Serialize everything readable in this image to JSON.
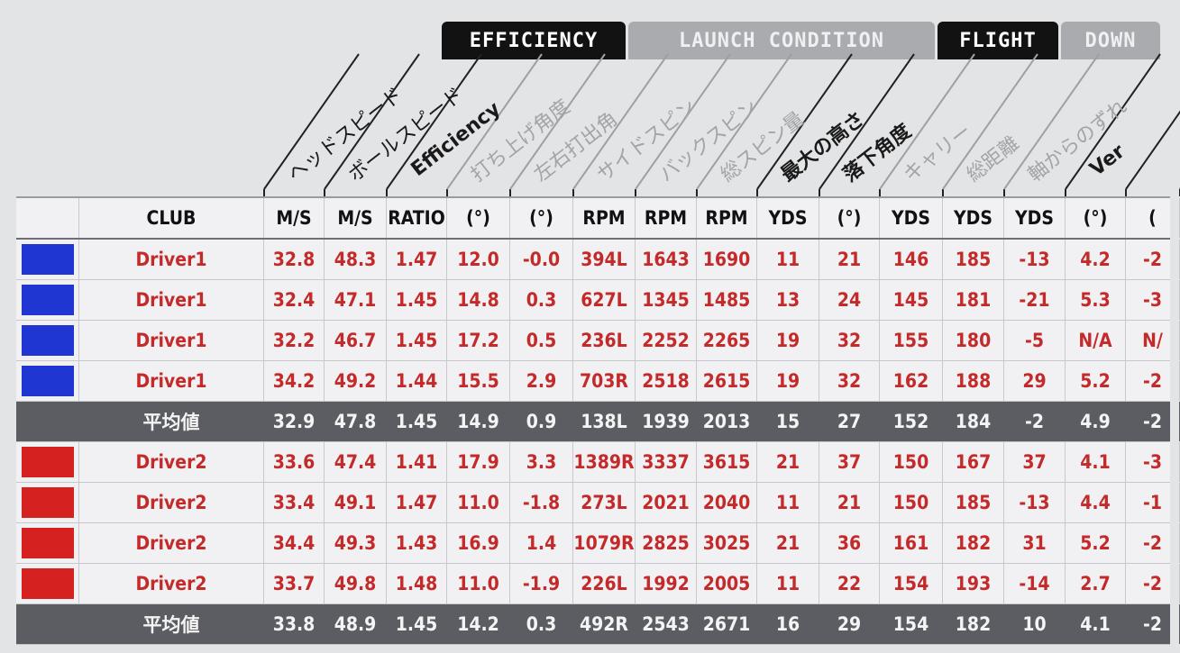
{
  "tabs": [
    {
      "label": "EFFICIENCY",
      "style": "dark"
    },
    {
      "label": "LAUNCH CONDITION",
      "style": "light"
    },
    {
      "label": "FLIGHT",
      "style": "dark"
    },
    {
      "label": "DOWN",
      "style": "light"
    }
  ],
  "diagonal_headers": [
    "ヘッドスピード",
    "ボールスピード",
    "Efficiency",
    "打ち上げ角度",
    "左右打出角",
    "サイドスピン",
    "バックスピン",
    "総スピン量",
    "最大の高さ",
    "落下角度",
    "キャリー",
    "総距離",
    "軸からのずれ",
    "Ver"
  ],
  "columns": [
    "",
    "CLUB",
    "M/S",
    "M/S",
    "RATIO",
    "(°)",
    "(°)",
    "RPM",
    "RPM",
    "RPM",
    "YDS",
    "(°)",
    "YDS",
    "YDS",
    "YDS",
    "(°)",
    "("
  ],
  "rows": [
    {
      "type": "data",
      "swatch": "blue",
      "club": "Driver1",
      "values": [
        "32.8",
        "48.3",
        "1.47",
        "12.0",
        "-0.0",
        "394L",
        "1643",
        "1690",
        "11",
        "21",
        "146",
        "185",
        "-13",
        "4.2",
        "-2"
      ]
    },
    {
      "type": "data",
      "swatch": "blue",
      "club": "Driver1",
      "values": [
        "32.4",
        "47.1",
        "1.45",
        "14.8",
        "0.3",
        "627L",
        "1345",
        "1485",
        "13",
        "24",
        "145",
        "181",
        "-21",
        "5.3",
        "-3"
      ]
    },
    {
      "type": "data",
      "swatch": "blue",
      "club": "Driver1",
      "values": [
        "32.2",
        "46.7",
        "1.45",
        "17.2",
        "0.5",
        "236L",
        "2252",
        "2265",
        "19",
        "32",
        "155",
        "180",
        "-5",
        "N/A",
        "N/"
      ]
    },
    {
      "type": "data",
      "swatch": "blue",
      "club": "Driver1",
      "values": [
        "34.2",
        "49.2",
        "1.44",
        "15.5",
        "2.9",
        "703R",
        "2518",
        "2615",
        "19",
        "32",
        "162",
        "188",
        "29",
        "5.2",
        "-2"
      ]
    },
    {
      "type": "avg",
      "swatch": "",
      "club": "平均値",
      "values": [
        "32.9",
        "47.8",
        "1.45",
        "14.9",
        "0.9",
        "138L",
        "1939",
        "2013",
        "15",
        "27",
        "152",
        "184",
        "-2",
        "4.9",
        "-2"
      ]
    },
    {
      "type": "data",
      "swatch": "red",
      "club": "Driver2",
      "values": [
        "33.6",
        "47.4",
        "1.41",
        "17.9",
        "3.3",
        "1389R",
        "3337",
        "3615",
        "21",
        "37",
        "150",
        "167",
        "37",
        "4.1",
        "-3"
      ]
    },
    {
      "type": "data",
      "swatch": "red",
      "club": "Driver2",
      "values": [
        "33.4",
        "49.1",
        "1.47",
        "11.0",
        "-1.8",
        "273L",
        "2021",
        "2040",
        "11",
        "21",
        "150",
        "185",
        "-13",
        "4.4",
        "-1"
      ]
    },
    {
      "type": "data",
      "swatch": "red",
      "club": "Driver2",
      "values": [
        "34.4",
        "49.3",
        "1.43",
        "16.9",
        "1.4",
        "1079R",
        "2825",
        "3025",
        "21",
        "36",
        "161",
        "182",
        "31",
        "5.2",
        "-2"
      ]
    },
    {
      "type": "data",
      "swatch": "red",
      "club": "Driver2",
      "values": [
        "33.7",
        "49.8",
        "1.48",
        "11.0",
        "-1.9",
        "226L",
        "1992",
        "2005",
        "11",
        "22",
        "154",
        "193",
        "-14",
        "2.7",
        "-2"
      ]
    },
    {
      "type": "avg",
      "swatch": "",
      "club": "平均値",
      "values": [
        "33.8",
        "48.9",
        "1.45",
        "14.2",
        "0.3",
        "492R",
        "2543",
        "2671",
        "16",
        "29",
        "154",
        "182",
        "10",
        "4.1",
        "-2"
      ]
    }
  ],
  "colors": {
    "blue_swatch": "#1f36d2",
    "red_swatch": "#d62121",
    "data_text": "#c42a2a",
    "avg_bg": "#5b5d62"
  }
}
